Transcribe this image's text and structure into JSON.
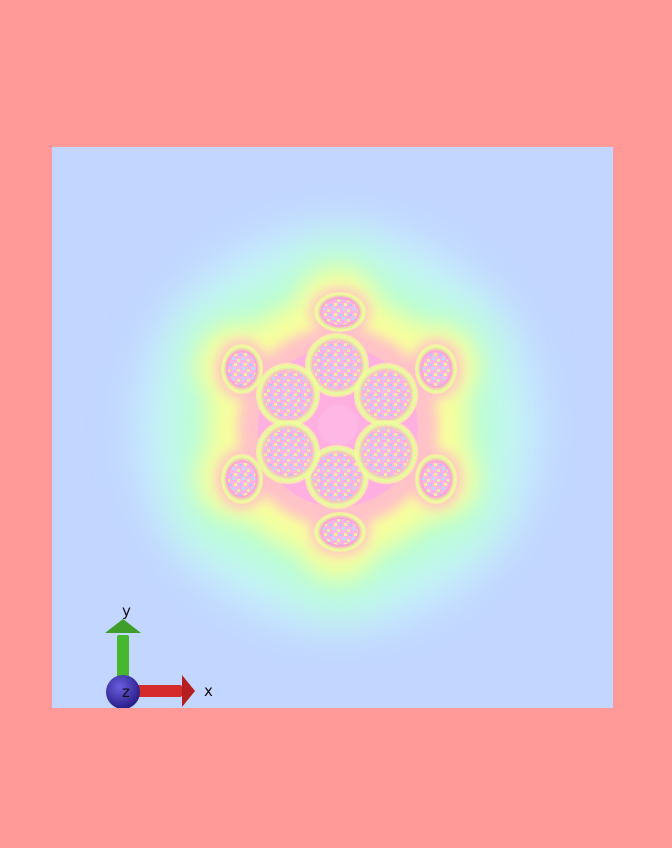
{
  "viewer": {
    "background_color": "#ff9a98",
    "plot_background_color": "#c2d6ff"
  },
  "field_plot": {
    "colormap": [
      "#c2d6ff",
      "#b6f8ff",
      "#b4ffc4",
      "#f6ff9a",
      "#ffd6a0",
      "#ff9ed6",
      "#ffb6e8"
    ],
    "petal_count": 6
  },
  "axes": {
    "x_label": "x",
    "y_label": "y",
    "z_label": "z",
    "x_color": "#d62b2b",
    "y_color": "#47b82e",
    "z_color": "#3a2da6"
  }
}
